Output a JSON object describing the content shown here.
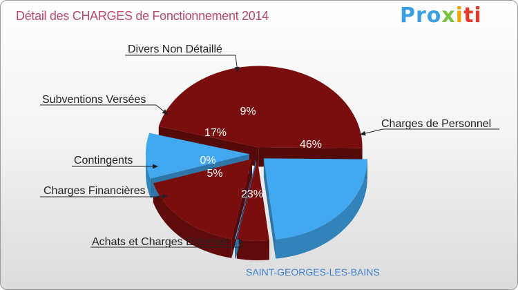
{
  "title": "Détail des CHARGES de Fonctionnement 2014",
  "logo": {
    "p1": "Pro",
    "p2": "x",
    "p3": "i",
    "p4": "ti"
  },
  "subtitle": "SAINT-GEORGES-LES-BAINS",
  "colors": {
    "dark_red": "#7a0e0e",
    "blue": "#42a8f0"
  },
  "chart_data": {
    "type": "pie",
    "title": "Détail des CHARGES de Fonctionnement 2014",
    "slices": [
      {
        "label": "Charges de Personnel",
        "value": 46,
        "value_label": "46%",
        "color": "#7a0e0e"
      },
      {
        "label": "Achats et Charges Externes",
        "value": 23,
        "value_label": "23%",
        "color": "#42a8f0"
      },
      {
        "label": "Charges Financières",
        "value": 5,
        "value_label": "5%",
        "color": "#7a0e0e"
      },
      {
        "label": "Contingents",
        "value": 0,
        "value_label": "0%",
        "color": "#42a8f0"
      },
      {
        "label": "Subventions Versées",
        "value": 17,
        "value_label": "17%",
        "color": "#7a0e0e"
      },
      {
        "label": "Divers Non Détaillé",
        "value": 9,
        "value_label": "9%",
        "color": "#42a8f0"
      }
    ]
  }
}
